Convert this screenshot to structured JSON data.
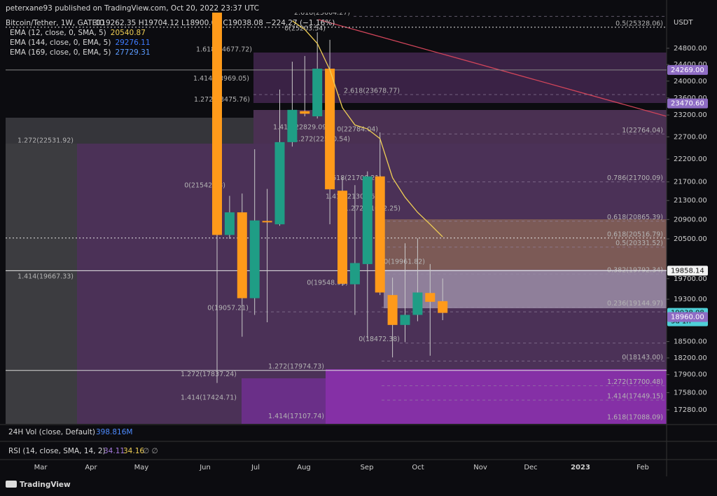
{
  "header": {
    "published": "peterxane93 published on TradingView.com, Oct 20, 2022 23:37 UTC",
    "symbol": "Bitcoin/Tether, 1W, GATEIO",
    "ohlc": "O19262.35 H19704.12 L18900.00 C19038.08 −224.27 (−1.16%)"
  },
  "chart_data": {
    "type": "candlestick",
    "log_scale": true,
    "axis_title": "USDT",
    "ylim": [
      17040,
      25700
    ],
    "yticks": [
      {
        "value": 24800,
        "label": "24800.00"
      },
      {
        "value": 24400,
        "label": "24400.00"
      },
      {
        "value": 24000,
        "label": "24000.00"
      },
      {
        "value": 23600,
        "label": "23600.00"
      },
      {
        "value": 23200,
        "label": "23200.00"
      },
      {
        "value": 22700,
        "label": "22700.00"
      },
      {
        "value": 22200,
        "label": "22200.00"
      },
      {
        "value": 21700,
        "label": "21700.00"
      },
      {
        "value": 21300,
        "label": "21300.00"
      },
      {
        "value": 20900,
        "label": "20900.00"
      },
      {
        "value": 20500,
        "label": "20500.00"
      },
      {
        "value": 19700,
        "label": "19700.00"
      },
      {
        "value": 19300,
        "label": "19300.00"
      },
      {
        "value": 18500,
        "label": "18500.00"
      },
      {
        "value": 18200,
        "label": "18200.00"
      },
      {
        "value": 17900,
        "label": "17900.00"
      },
      {
        "value": 17580,
        "label": "17580.00"
      },
      {
        "value": 17280,
        "label": "17280.00"
      }
    ],
    "x_axis_labels": [
      "Mar",
      "Apr",
      "May",
      "Jun",
      "Jul",
      "Aug",
      "Sep",
      "Oct",
      "Nov",
      "Dec",
      "2023",
      "Feb"
    ],
    "up_color": "#1f9d85",
    "down_color": "#ff9a1a",
    "candles": {
      "open": [
        26590,
        20580,
        21050,
        19320,
        20870,
        20800,
        22580,
        23290,
        23170,
        24300,
        21510,
        19590,
        19990,
        21820,
        19380,
        18810,
        19000,
        19420,
        19262.35
      ],
      "high": [
        28000,
        21400,
        21450,
        22420,
        21550,
        23800,
        24470,
        24610,
        25200,
        25010,
        21800,
        21630,
        21930,
        22800,
        19720,
        20410,
        20510,
        19990,
        19704.12
      ],
      "low": [
        17750,
        20500,
        18590,
        19000,
        18860,
        20770,
        22480,
        23170,
        23120,
        20800,
        19560,
        19000,
        18560,
        19380,
        18210,
        18490,
        18880,
        18240,
        18900
      ],
      "close": [
        20580,
        21050,
        19320,
        20880,
        20850,
        22580,
        23320,
        23230,
        24300,
        21540,
        19600,
        20010,
        21820,
        19430,
        18810,
        19000,
        19430,
        19250,
        19038.08
      ]
    },
    "series": [
      {
        "name": "EMA (12, close, 0, SMA, 5)",
        "color": "#f0cf55",
        "last": 20540.87,
        "values": [
          null,
          null,
          null,
          null,
          null,
          null,
          25490,
          25270,
          24920,
          24270,
          23370,
          22970,
          22880,
          22660,
          21790,
          21370,
          21050,
          20800,
          20540.87
        ]
      },
      {
        "name": "EMA (144, close, 0, EMA, 5)",
        "color": "#3d7bff",
        "last": 29276.11
      },
      {
        "name": "EMA (169, close, 0, EMA, 5)",
        "color": "#5b9bff",
        "last": 27729.31
      }
    ],
    "annotations": [
      {
        "label": "2.618(25604.27)",
        "value": 25604.27
      },
      {
        "label": "0(25203.54)",
        "value": 25203.54
      },
      {
        "label": "0.5(25328.06)",
        "value": 25328.06
      },
      {
        "label": "1.618(24677.72)",
        "value": 24677.72
      },
      {
        "label": "1.414(23969.05)",
        "value": 23969.05
      },
      {
        "label": "2.618(23678.77)",
        "value": 23678.77
      },
      {
        "label": "1.272(23475.76)",
        "value": 23475.76
      },
      {
        "label": "1(22764.04)",
        "value": 22764.04
      },
      {
        "label": "0(22784.04)",
        "value": 22784.04
      },
      {
        "label": "1.414(22829.09)",
        "value": 22829.09
      },
      {
        "label": "1.272(22560.54)",
        "value": 22560.54
      },
      {
        "label": "1.272(22531.92)",
        "value": 22531.92
      },
      {
        "label": "0.786(21700.09)",
        "value": 21700.09
      },
      {
        "label": "1.618(21700.21)",
        "value": 21700.21
      },
      {
        "label": "0(21542.83)",
        "value": 21542.83
      },
      {
        "label": "1.414(21304.62)",
        "value": 21304.62
      },
      {
        "label": "1.272(21052.25)",
        "value": 21052.25
      },
      {
        "label": "0.618(20865.39)",
        "value": 20865.39
      },
      {
        "label": "0.618(20516.79)",
        "value": 20516.79
      },
      {
        "label": "0.5(20331.52)",
        "value": 20331.52
      },
      {
        "label": "0(19961.82)",
        "value": 19961.82
      },
      {
        "label": "0.382(19792.34)",
        "value": 19792.34
      },
      {
        "label": "1.414(19667.33)",
        "value": 19667.33
      },
      {
        "label": "0(19548.96)",
        "value": 19548.96
      },
      {
        "label": "0.236(19144.97)",
        "value": 19144.97
      },
      {
        "label": "0(19057.21)",
        "value": 19057.21
      },
      {
        "label": "0(18472.38)",
        "value": 18472.38
      },
      {
        "label": "0(18143.00)",
        "value": 18143
      },
      {
        "label": "1.272(17974.73)",
        "value": 17974.73
      },
      {
        "label": "1.272(17837.24)",
        "value": 17837.24
      },
      {
        "label": "1.272(17700.48)",
        "value": 17700.48
      },
      {
        "label": "1.414(17449.15)",
        "value": 17449.15
      },
      {
        "label": "1.414(17424.71)",
        "value": 17424.71
      },
      {
        "label": "1.414(17107.74)",
        "value": 17107.74
      },
      {
        "label": "1.618(17088.09)",
        "value": 17088.09
      }
    ],
    "price_tags": [
      {
        "value": 24269,
        "label": "24269.00",
        "color": "#8e6cc4",
        "text_color": "#ffffff",
        "line": true
      },
      {
        "value": 23470.6,
        "label": "23470.60",
        "color": "#8e6cc4",
        "text_color": "#ffffff",
        "line": false
      },
      {
        "value": 19858.14,
        "label": "19858.14",
        "color": "#f2f2f2",
        "text_color": "#111111",
        "line": true
      },
      {
        "value": 19038.08,
        "label": "19038.08",
        "countdown": "3d 1h",
        "color": "#4fd0d8",
        "text_color": "#111111",
        "line": false
      },
      {
        "value": 18960,
        "label": "18960.00",
        "color": "#8e6cc4",
        "text_color": "#ffffff",
        "line": false
      }
    ]
  },
  "volume": {
    "name": "24H Vol (close, Default)",
    "value": "398.816M"
  },
  "rsi": {
    "name": "RSI (14, close, SMA, 14, 2)",
    "values": [
      34.11,
      34.16
    ],
    "extra": "∅ ∅"
  },
  "footer": {
    "brand": "TradingView"
  }
}
